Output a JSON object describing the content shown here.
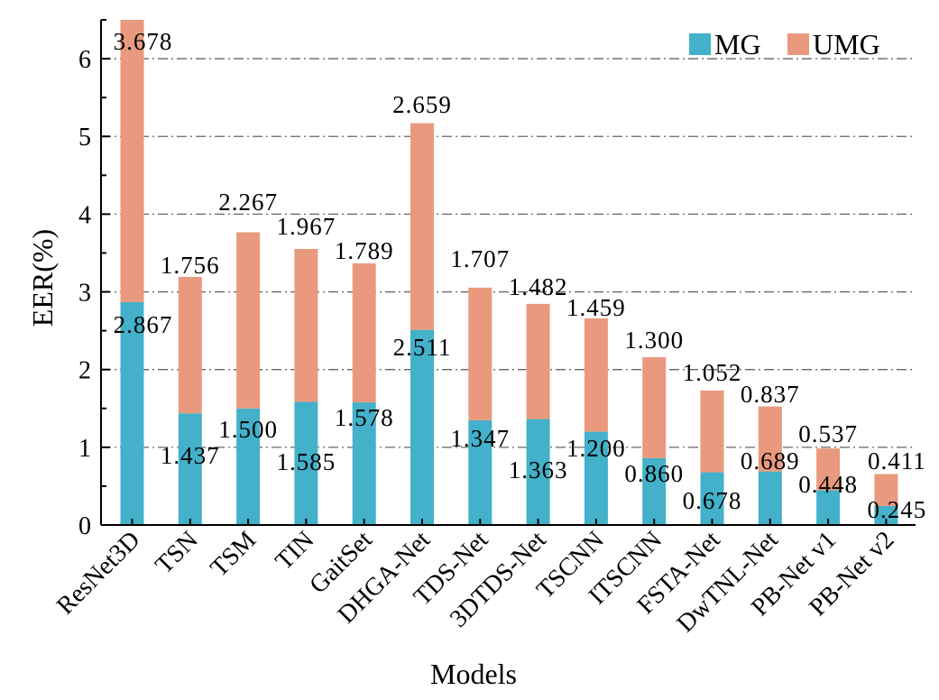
{
  "chart_data": {
    "type": "bar",
    "stacked": true,
    "title": "",
    "xlabel": "Models",
    "ylabel": "EER(%)",
    "ylim": [
      0,
      6.5
    ],
    "yticks": [
      0,
      1,
      2,
      3,
      4,
      5,
      6
    ],
    "grid": "horizontal dash-dot",
    "legend_position": "top-right",
    "categories": [
      "ResNet3D",
      "TSN",
      "TSM",
      "TIN",
      "GaitSet",
      "DHGA-Net",
      "TDS-Net",
      "3DTDS-Net",
      "TSCNN",
      "ITSCNN",
      "FSTA-Net",
      "DwTNL-Net",
      "PB-Net v1",
      "PB-Net v2"
    ],
    "series": [
      {
        "name": "MG",
        "color": "#43b1c9",
        "values": [
          2.867,
          1.437,
          1.5,
          1.585,
          1.578,
          2.511,
          1.347,
          1.363,
          1.2,
          0.86,
          0.678,
          0.689,
          0.448,
          0.245
        ],
        "labels": [
          "2.867",
          "1.437",
          "1.500",
          "1.585",
          "1.578",
          "2.511",
          "1.347",
          "1.363",
          "1.200",
          "0.860",
          "0.678",
          "0.689",
          "0.448",
          "0.245"
        ]
      },
      {
        "name": "UMG",
        "color": "#e99a7e",
        "values": [
          3.678,
          1.756,
          2.267,
          1.967,
          1.789,
          2.659,
          1.707,
          1.482,
          1.459,
          1.3,
          1.052,
          0.837,
          0.537,
          0.411
        ],
        "labels": [
          "3.678",
          "1.756",
          "2.267",
          "1.967",
          "1.789",
          "2.659",
          "1.707",
          "1.482",
          "1.459",
          "1.300",
          "1.052",
          "0.837",
          "0.537",
          "0.411"
        ]
      }
    ]
  }
}
